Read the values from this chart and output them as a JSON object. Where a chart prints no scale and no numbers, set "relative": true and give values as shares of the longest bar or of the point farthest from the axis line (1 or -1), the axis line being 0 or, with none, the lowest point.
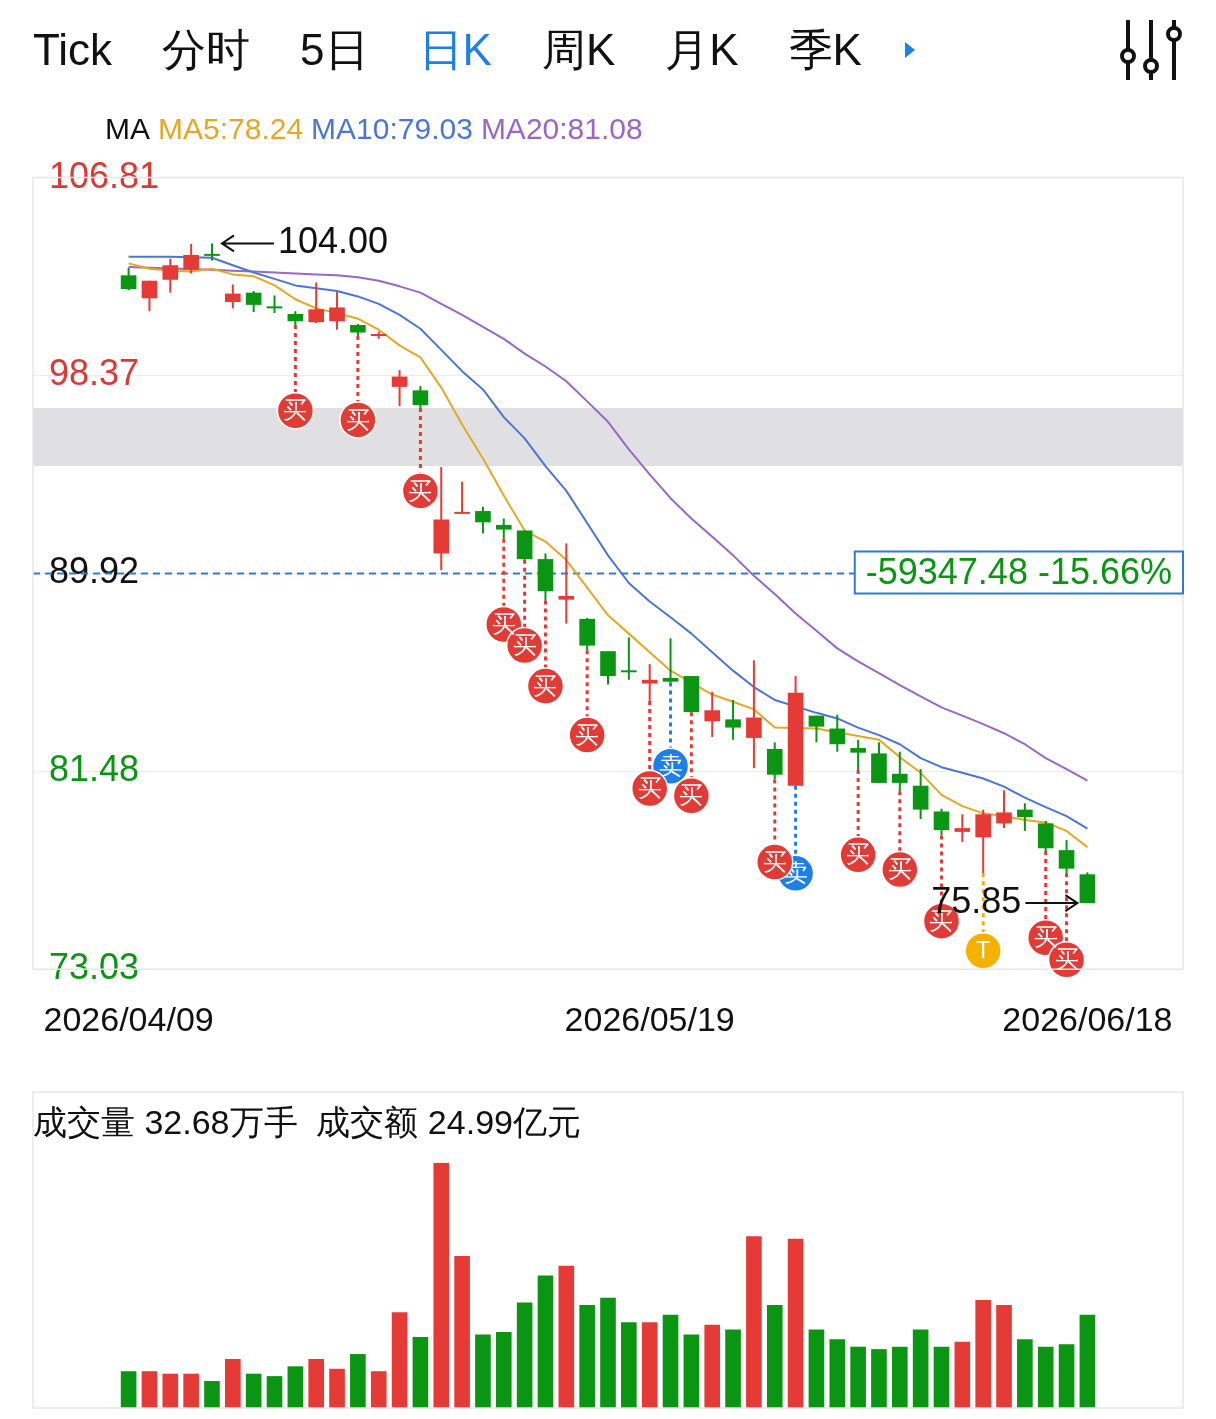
{
  "chart_data": [
    {
      "type": "candlestick",
      "annotations": [
        "Tick",
        "分时",
        "5日",
        "日K",
        "周K",
        "月K",
        "季K",
        "104.00",
        {
          "text": "75.85",
          "x": "2026/06/18",
          "y": 75.85
        },
        "-59347.48 -15.66%"
      ],
      "categories": [
        "2026/04/09",
        null,
        null,
        null,
        null,
        null,
        null,
        null,
        null,
        null,
        null,
        null,
        null,
        null,
        null,
        null,
        null,
        null,
        null,
        null,
        null,
        null,
        null,
        null,
        null,
        "2026/05/19",
        null,
        null,
        null,
        null,
        null,
        null,
        null,
        null,
        null,
        null,
        null,
        null,
        null,
        null,
        null,
        null,
        null,
        null,
        null,
        null,
        "2026/06/18"
      ],
      "ohlc": [
        [
          102.64,
          102.96,
          102.01,
          102.05
        ],
        [
          101.66,
          102.41,
          101.11,
          102.41
        ],
        [
          102.45,
          103.35,
          101.9,
          103.07
        ],
        [
          102.88,
          103.98,
          102.72,
          103.51
        ],
        [
          103.51,
          104.0,
          103.27,
          103.47
        ],
        [
          101.5,
          102.25,
          101.23,
          101.86
        ],
        [
          101.9,
          101.97,
          101.07,
          101.38
        ],
        [
          101.27,
          101.78,
          101.03,
          101.23
        ],
        [
          100.99,
          101.11,
          100.52,
          100.68
        ],
        [
          100.64,
          102.33,
          100.6,
          101.19
        ],
        [
          100.68,
          101.93,
          100.32,
          101.27
        ],
        [
          100.52,
          100.56,
          100.05,
          100.2
        ],
        [
          100.05,
          100.24,
          99.93,
          100.13
        ],
        [
          97.88,
          98.59,
          97.06,
          98.32
        ],
        [
          97.73,
          97.92,
          96.98,
          97.1
        ],
        [
          90.77,
          94.46,
          90.06,
          92.22
        ],
        [
          92.46,
          93.83,
          92.46,
          92.54
        ],
        [
          92.58,
          92.77,
          91.63,
          92.1
        ],
        [
          91.99,
          92.26,
          91.4,
          91.79
        ],
        [
          91.75,
          91.75,
          90.5,
          90.53
        ],
        [
          90.53,
          90.77,
          88.76,
          89.16
        ],
        [
          88.8,
          91.2,
          87.78,
          88.96
        ],
        [
          87.98,
          88.02,
          86.64,
          86.84
        ],
        [
          86.6,
          86.6,
          85.18,
          85.54
        ],
        [
          85.77,
          87.19,
          85.38,
          85.7
        ],
        [
          85.22,
          86.05,
          84.48,
          85.38
        ],
        [
          85.46,
          87.15,
          85.26,
          85.3
        ],
        [
          85.54,
          85.54,
          84.0,
          84.0
        ],
        [
          83.61,
          84.87,
          82.94,
          84.08
        ],
        [
          83.69,
          84.52,
          82.82,
          83.34
        ],
        [
          82.9,
          86.21,
          81.61,
          83.77
        ],
        [
          82.43,
          82.71,
          81.13,
          81.33
        ],
        [
          80.86,
          85.54,
          80.86,
          84.83
        ],
        [
          83.85,
          83.85,
          82.71,
          83.38
        ],
        [
          83.3,
          83.89,
          82.31,
          82.63
        ],
        [
          82.47,
          82.82,
          81.53,
          82.27
        ],
        [
          82.24,
          82.71,
          80.98,
          80.98
        ],
        [
          81.37,
          82.31,
          80.62,
          80.98
        ],
        [
          80.86,
          81.57,
          79.44,
          79.84
        ],
        [
          79.76,
          79.88,
          78.74,
          78.97
        ],
        [
          78.89,
          79.64,
          78.46,
          79.05
        ],
        [
          78.66,
          79.84,
          77.12,
          79.64
        ],
        [
          79.25,
          80.66,
          79.05,
          79.72
        ],
        [
          79.84,
          80.11,
          78.93,
          79.52
        ],
        [
          79.25,
          79.36,
          78.07,
          78.19
        ],
        [
          78.11,
          78.54,
          77.12,
          77.32
        ],
        [
          77.08,
          77.16,
          75.85,
          75.85
        ]
      ],
      "colors": [
        "#0a9613",
        "#e63a36",
        "#e63a36",
        "#e63a36",
        "#0a9613",
        "#e63a36",
        "#0a9613",
        "#0a9613",
        "#0a9613",
        "#e63a36",
        "#e63a36",
        "#0a9613",
        "#e63a36",
        "#e63a36",
        "#0a9613",
        "#e63a36",
        "#e63a36",
        "#0a9613",
        "#0a9613",
        "#0a9613",
        "#0a9613",
        "#e63a36",
        "#0a9613",
        "#0a9613",
        "#0a9613",
        "#e63a36",
        "#0a9613",
        "#0a9613",
        "#e63a36",
        "#0a9613",
        "#e63a36",
        "#0a9613",
        "#e63a36",
        "#0a9613",
        "#0a9613",
        "#0a9613",
        "#0a9613",
        "#0a9613",
        "#0a9613",
        "#0a9613",
        "#e63a36",
        "#e63a36",
        "#e63a36",
        "#0a9613",
        "#0a9613",
        "#0a9613",
        "#0a9613"
      ],
      "ylim": [
        73.03,
        106.81
      ],
      "yticks": [
        106.81,
        98.37,
        89.92,
        81.48,
        73.03
      ],
      "grid": "y",
      "legend": "top left",
      "legend_title": "MA",
      "series": [
        {
          "type": "line",
          "name": "MA5:78.24",
          "color": "#e5a823",
          "values": [
            103.15,
            102.92,
            102.84,
            102.8,
            102.92,
            102.68,
            102.6,
            102.21,
            101.62,
            101.23,
            101.03,
            100.79,
            100.32,
            99.65,
            99.14,
            97.85,
            96.27,
            94.82,
            93.24,
            91.75,
            91.28,
            90.49,
            89.31,
            88.13,
            87.35,
            86.56,
            85.77,
            null,
            84.75,
            84.44,
            84.12,
            83.34,
            null,
            83.3,
            83.14,
            82.98,
            82.82,
            82.08,
            81.41,
            80.47,
            79.99,
            79.68,
            79.56,
            79.4,
            79.29,
            78.93,
            78.24
          ]
        },
        {
          "type": "line",
          "name": "MA10:79.03",
          "color": "#4a76d6",
          "values": [
            103.43,
            103.43,
            103.43,
            null,
            103.39,
            103.07,
            102.76,
            102.49,
            102.21,
            102.09,
            101.97,
            101.74,
            101.42,
            100.95,
            100.36,
            99.46,
            98.55,
            97.77,
            96.59,
            95.68,
            94.5,
            93.44,
            92.07,
            90.69,
            89.51,
            88.72,
            88.05,
            87.35,
            86.56,
            85.77,
            85.07,
            84.52,
            null,
            83.97,
            83.73,
            83.34,
            83.02,
            82.63,
            82.04,
            81.65,
            81.41,
            81.17,
            80.82,
            80.35,
            79.95,
            79.56,
            79.03
          ]
        },
        {
          "type": "line",
          "name": "MA20:81.08",
          "color": "#9b66c6",
          "values": [
            103.0,
            102.96,
            null,
            null,
            102.88,
            102.84,
            102.8,
            102.76,
            102.72,
            102.68,
            102.64,
            102.56,
            102.41,
            102.17,
            101.9,
            101.42,
            100.95,
            100.44,
            99.93,
            99.3,
            98.75,
            98.12,
            97.26,
            96.39,
            95.21,
            94.15,
            93.13,
            92.26,
            91.48,
            90.69,
            89.82,
            89.04,
            88.21,
            87.47,
            86.72,
            86.17,
            85.66,
            85.15,
            84.67,
            84.2,
            83.85,
            83.49,
            83.1,
            82.63,
            82.04,
            81.57,
            81.08
          ]
        },
        {
          "type": "scatter",
          "name": "买",
          "color": "#e23b35",
          "marker": "circle",
          "values": [
            null,
            null,
            null,
            null,
            null,
            null,
            null,
            null,
            96.86,
            null,
            null,
            96.47,
            null,
            null,
            93.44,
            null,
            null,
            null,
            87.74,
            86.84,
            85.11,
            null,
            83.02,
            null,
            null,
            80.74,
            null,
            80.43,
            null,
            null,
            null,
            77.6,
            null,
            null,
            null,
            77.91,
            null,
            77.28,
            null,
            75.08,
            null,
            null,
            null,
            null,
            74.37,
            73.43,
            null
          ]
        },
        {
          "type": "scatter",
          "name": "卖",
          "color": "#1e7fe8",
          "marker": "circle",
          "values": [
            null,
            null,
            null,
            null,
            null,
            null,
            null,
            null,
            null,
            null,
            null,
            null,
            null,
            null,
            null,
            null,
            null,
            null,
            null,
            null,
            null,
            null,
            null,
            null,
            null,
            null,
            81.69,
            null,
            null,
            null,
            null,
            null,
            77.12,
            null,
            null,
            null,
            null,
            null,
            null,
            null,
            null,
            null,
            null,
            null,
            null,
            null,
            null
          ]
        },
        {
          "type": "scatter",
          "name": "T",
          "color": "#f5b100",
          "marker": "circle",
          "values": [
            null,
            null,
            null,
            null,
            null,
            null,
            null,
            null,
            null,
            null,
            null,
            null,
            null,
            null,
            null,
            null,
            null,
            null,
            null,
            null,
            null,
            null,
            null,
            null,
            null,
            null,
            null,
            null,
            null,
            null,
            null,
            null,
            null,
            null,
            null,
            null,
            null,
            null,
            null,
            null,
            null,
            73.82,
            null,
            null,
            null,
            null,
            null
          ]
        }
      ],
      "ref_lines": [
        {
          "axis": "y",
          "value": 89.92,
          "color": "#2f7ad6",
          "line_style": "dashed"
        }
      ],
      "bands": [
        {
          "axis": "y",
          "from": 94.5,
          "to": 96.98,
          "color": "#e0e0e2"
        }
      ]
    },
    {
      "type": "bar",
      "relative": true,
      "title": "成交量 32.68万手  成交额 24.99亿元",
      "categories": [
        null,
        null,
        null,
        null,
        null,
        null,
        null,
        null,
        null,
        null,
        null,
        null,
        null,
        null,
        null,
        null,
        null,
        null,
        null,
        null,
        null,
        null,
        null,
        null,
        null,
        null,
        null,
        null,
        null,
        null,
        null,
        null,
        null,
        null,
        null,
        null,
        null,
        null,
        null,
        null,
        null,
        null,
        null,
        null,
        null,
        null,
        null
      ],
      "values": [
        0.15,
        0.15,
        0.14,
        0.14,
        0.11,
        0.2,
        0.14,
        0.13,
        0.17,
        0.2,
        0.16,
        0.22,
        0.15,
        0.39,
        0.29,
        1,
        0.62,
        0.3,
        0.31,
        0.43,
        0.54,
        0.58,
        0.42,
        0.45,
        0.35,
        0.35,
        0.38,
        0.3,
        0.34,
        0.32,
        0.7,
        0.42,
        0.69,
        0.32,
        0.28,
        0.25,
        0.24,
        0.25,
        0.32,
        0.25,
        0.27,
        0.44,
        0.42,
        0.28,
        0.25,
        0.26,
        0.38
      ],
      "colors": [
        "#0a9613",
        "#e63a36",
        "#e63a36",
        "#e63a36",
        "#0a9613",
        "#e63a36",
        "#0a9613",
        "#0a9613",
        "#0a9613",
        "#e63a36",
        "#e63a36",
        "#0a9613",
        "#e63a36",
        "#e63a36",
        "#0a9613",
        "#e63a36",
        "#e63a36",
        "#0a9613",
        "#0a9613",
        "#0a9613",
        "#0a9613",
        "#e63a36",
        "#0a9613",
        "#0a9613",
        "#0a9613",
        "#e63a36",
        "#0a9613",
        "#0a9613",
        "#e63a36",
        "#0a9613",
        "#e63a36",
        "#0a9613",
        "#e63a36",
        "#0a9613",
        "#0a9613",
        "#0a9613",
        "#0a9613",
        "#0a9613",
        "#0a9613",
        "#0a9613",
        "#e63a36",
        "#e63a36",
        "#e63a36",
        "#0a9613",
        "#0a9613",
        "#0a9613",
        "#0a9613"
      ]
    }
  ]
}
